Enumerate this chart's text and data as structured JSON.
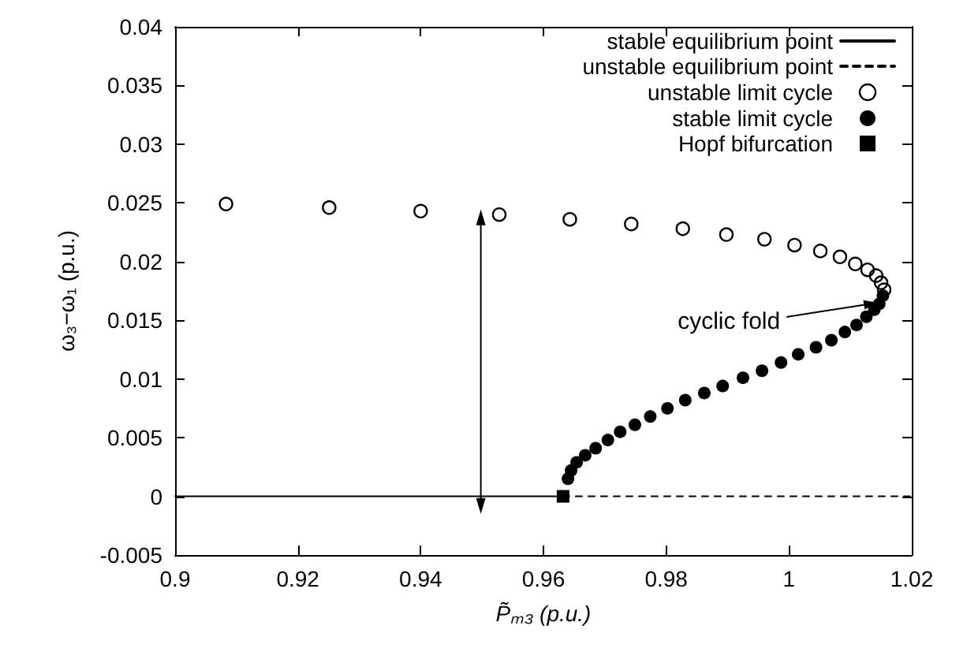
{
  "chart_data": {
    "type": "scatter",
    "xlabel": "P̃ₘ₃ (p.u.)",
    "ylabel": "ω₃−ω₁ (p.u.)",
    "xlim": [
      0.9,
      1.02
    ],
    "xticks": [
      0.9,
      0.92,
      0.94,
      0.96,
      0.98,
      1,
      1.02
    ],
    "ylim": [
      -0.005,
      0.04
    ],
    "yticks": [
      -0.005,
      0,
      0.005,
      0.01,
      0.015,
      0.02,
      0.025,
      0.03,
      0.035,
      0.04
    ],
    "grid": false,
    "legend": "top right",
    "annotations": [
      {
        "text": "cyclic fold",
        "x": 1.0145,
        "y": 0.0165
      }
    ],
    "series": [
      {
        "name": "stable equilibrium point",
        "type": "line",
        "marker": "none",
        "line_style": "solid",
        "color": "#000000",
        "x": [
          0.9,
          0.9632
        ],
        "values": [
          0,
          0
        ]
      },
      {
        "name": "unstable equilibrium point",
        "type": "line",
        "marker": "none",
        "line_style": "dashed",
        "color": "#000000",
        "x": [
          0.9632,
          1.02
        ],
        "values": [
          0,
          0
        ]
      },
      {
        "name": "unstable limit cycle",
        "marker": "emptyCircle",
        "color": "#000000",
        "x": [
          0.9083,
          0.9251,
          0.94,
          0.9528,
          0.9643,
          0.9743,
          0.9827,
          0.9898,
          0.996,
          1.0009,
          1.0051,
          1.0083,
          1.0108,
          1.0128,
          1.0142,
          1.015,
          1.0155
        ],
        "values": [
          0.0249,
          0.0246,
          0.0243,
          0.024,
          0.0236,
          0.0232,
          0.0228,
          0.0223,
          0.0219,
          0.0214,
          0.0209,
          0.0204,
          0.0198,
          0.0193,
          0.0188,
          0.0182,
          0.0176
        ]
      },
      {
        "name": "stable limit cycle",
        "marker": "circle",
        "color": "#000000",
        "x": [
          0.964,
          0.9645,
          0.9654,
          0.9668,
          0.9685,
          0.9705,
          0.9725,
          0.9749,
          0.9774,
          0.9802,
          0.9831,
          0.9862,
          0.9892,
          0.9925,
          0.9956,
          0.9987,
          1.0015,
          1.0044,
          1.0069,
          1.0091,
          1.011,
          1.0126,
          1.0139,
          1.0147,
          1.0153
        ],
        "values": [
          0.0015,
          0.0022,
          0.0029,
          0.0035,
          0.0041,
          0.0048,
          0.0055,
          0.0061,
          0.0068,
          0.0075,
          0.0082,
          0.0088,
          0.0094,
          0.0101,
          0.0107,
          0.0114,
          0.0121,
          0.0127,
          0.0133,
          0.014,
          0.0146,
          0.0153,
          0.0159,
          0.0164,
          0.0171
        ]
      },
      {
        "name": "Hopf bifurcation",
        "marker": "square",
        "color": "#000000",
        "x": [
          0.9632
        ],
        "values": [
          0
        ]
      }
    ]
  }
}
